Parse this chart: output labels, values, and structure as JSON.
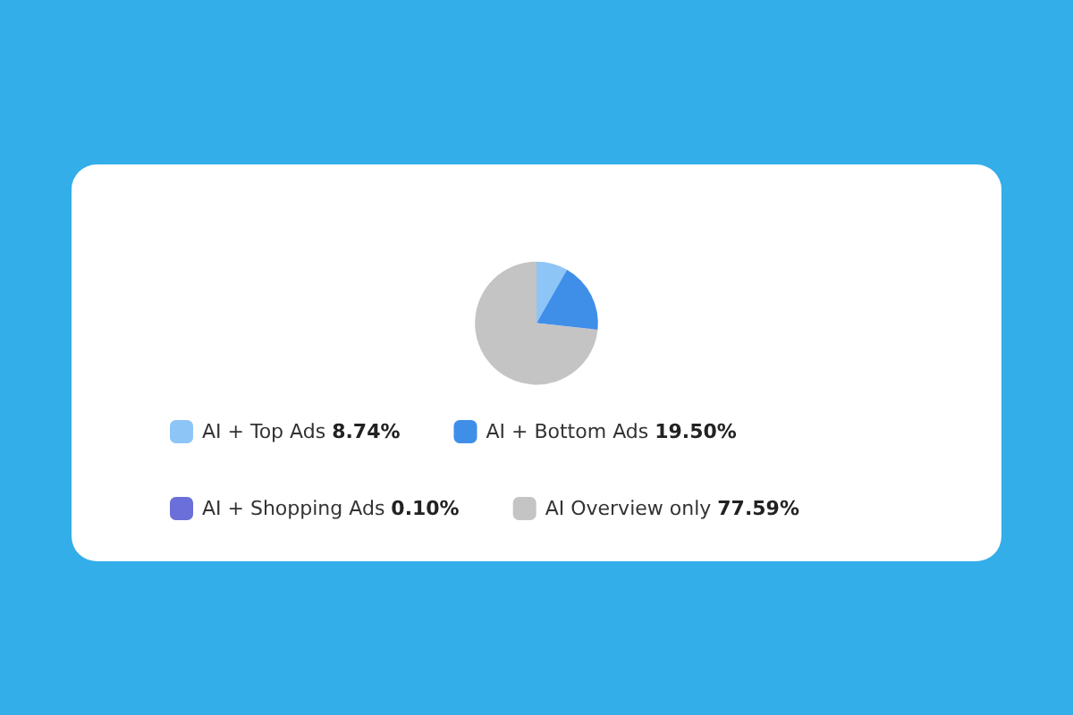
{
  "chart_data": {
    "type": "pie",
    "categories": [
      "AI + Top Ads",
      "AI + Bottom Ads",
      "AI + Shopping Ads",
      "AI Overview only"
    ],
    "values": [
      8.74,
      19.5,
      0.1,
      77.59
    ],
    "value_labels": [
      "8.74%",
      "19.50%",
      "0.10%",
      "77.59%"
    ],
    "colors": [
      "#8ec5f7",
      "#3f8fe9",
      "#6a6fd9",
      "#c4c4c4"
    ],
    "legend": "bottom"
  }
}
